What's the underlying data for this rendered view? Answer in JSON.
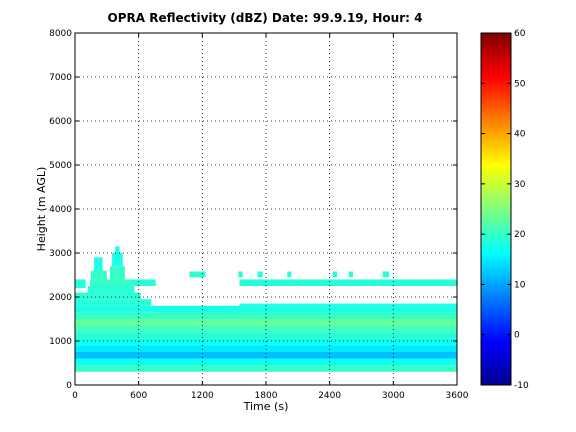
{
  "chart_data": {
    "type": "heatmap",
    "title": "OPRA Reflectivity (dBZ)  Date: 99.9.19, Hour: 4",
    "xlabel": "Time (s)",
    "ylabel": "Height (m AGL)",
    "xlim": [
      0,
      3600
    ],
    "ylim": [
      0,
      8000
    ],
    "x_ticks": [
      "0",
      "600",
      "1200",
      "1800",
      "2400",
      "3000",
      "3600"
    ],
    "y_ticks": [
      "0",
      "1000",
      "2000",
      "3000",
      "4000",
      "5000",
      "6000",
      "7000",
      "8000"
    ],
    "grid": true,
    "colorbar": {
      "range": [
        -10,
        60
      ],
      "ticks": [
        "-10",
        "0",
        "10",
        "20",
        "30",
        "40",
        "50",
        "60"
      ],
      "colormap": "jet"
    },
    "regions": [
      {
        "x": [
          0,
          3600
        ],
        "y": [
          300,
          450
        ],
        "dbz": 20
      },
      {
        "x": [
          0,
          3600
        ],
        "y": [
          450,
          600
        ],
        "dbz": 17
      },
      {
        "x": [
          0,
          3600
        ],
        "y": [
          600,
          750
        ],
        "dbz": 12
      },
      {
        "x": [
          0,
          3600
        ],
        "y": [
          750,
          900
        ],
        "dbz": 15
      },
      {
        "x": [
          0,
          3600
        ],
        "y": [
          900,
          1050
        ],
        "dbz": 17
      },
      {
        "x": [
          0,
          3600
        ],
        "y": [
          1050,
          1200
        ],
        "dbz": 19
      },
      {
        "x": [
          0,
          3600
        ],
        "y": [
          1200,
          1350
        ],
        "dbz": 21
      },
      {
        "x": [
          0,
          3600
        ],
        "y": [
          1350,
          1500
        ],
        "dbz": 23
      },
      {
        "x": [
          0,
          3600
        ],
        "y": [
          1500,
          1650
        ],
        "dbz": 20
      },
      {
        "x": [
          0,
          3600
        ],
        "y": [
          1650,
          1800
        ],
        "dbz": 18
      },
      {
        "x": [
          0,
          720
        ],
        "y": [
          1800,
          1950
        ],
        "dbz": 19
      },
      {
        "x": [
          0,
          620
        ],
        "y": [
          1950,
          2100
        ],
        "dbz": 19
      },
      {
        "x": [
          120,
          560
        ],
        "y": [
          2100,
          2250
        ],
        "dbz": 19
      },
      {
        "x": [
          140,
          520
        ],
        "y": [
          2250,
          2400
        ],
        "dbz": 20
      },
      {
        "x": [
          150,
          300
        ],
        "y": [
          2400,
          2600
        ],
        "dbz": 20
      },
      {
        "x": [
          330,
          470
        ],
        "y": [
          2400,
          2700
        ],
        "dbz": 20
      },
      {
        "x": [
          180,
          260
        ],
        "y": [
          2600,
          2900
        ],
        "dbz": 18
      },
      {
        "x": [
          350,
          450
        ],
        "y": [
          2700,
          3000
        ],
        "dbz": 18
      },
      {
        "x": [
          380,
          420
        ],
        "y": [
          3000,
          3150
        ],
        "dbz": 18
      },
      {
        "x": [
          0,
          100
        ],
        "y": [
          2200,
          2400
        ],
        "dbz": 19
      },
      {
        "x": [
          520,
          760
        ],
        "y": [
          2250,
          2400
        ],
        "dbz": 19
      },
      {
        "x": [
          1080,
          1230
        ],
        "y": [
          2450,
          2580
        ],
        "dbz": 19
      },
      {
        "x": [
          1540,
          1580
        ],
        "y": [
          2450,
          2580
        ],
        "dbz": 19
      },
      {
        "x": [
          1720,
          1770
        ],
        "y": [
          2450,
          2580
        ],
        "dbz": 19
      },
      {
        "x": [
          2000,
          2040
        ],
        "y": [
          2450,
          2580
        ],
        "dbz": 19
      },
      {
        "x": [
          2430,
          2470
        ],
        "y": [
          2450,
          2580
        ],
        "dbz": 19
      },
      {
        "x": [
          2580,
          2620
        ],
        "y": [
          2450,
          2580
        ],
        "dbz": 19
      },
      {
        "x": [
          2900,
          2960
        ],
        "y": [
          2450,
          2580
        ],
        "dbz": 19
      },
      {
        "x": [
          3250,
          3550
        ],
        "y": [
          2250,
          2400
        ],
        "dbz": 19
      },
      {
        "x": [
          1550,
          3600
        ],
        "y": [
          2250,
          2400
        ],
        "dbz": 19
      },
      {
        "x": [
          1550,
          3600
        ],
        "y": [
          1800,
          1850
        ],
        "dbz": 18
      }
    ]
  }
}
